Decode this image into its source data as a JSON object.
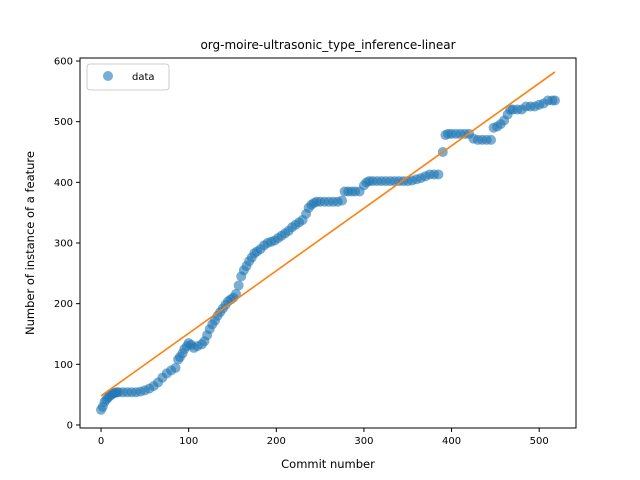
{
  "chart_data": {
    "type": "scatter",
    "title": "org-moire-ultrasonic_type_inference-linear",
    "xlabel": "Commit number",
    "ylabel": "Number of instance of a feature",
    "xlim": [
      -24,
      542
    ],
    "ylim": [
      -5,
      605
    ],
    "xticks": [
      0,
      100,
      200,
      300,
      400,
      500
    ],
    "yticks": [
      0,
      100,
      200,
      300,
      400,
      500,
      600
    ],
    "grid": false,
    "legend": {
      "placement": "top-left",
      "entries": [
        "data"
      ]
    },
    "colors": {
      "data": "#1f77b4",
      "fit": "#ff7f0e"
    },
    "series": [
      {
        "name": "data",
        "style": "markers",
        "points": [
          [
            0,
            25
          ],
          [
            2,
            30
          ],
          [
            4,
            38
          ],
          [
            6,
            42
          ],
          [
            8,
            45
          ],
          [
            10,
            48
          ],
          [
            12,
            50
          ],
          [
            14,
            52
          ],
          [
            16,
            53
          ],
          [
            18,
            54
          ],
          [
            20,
            54
          ],
          [
            25,
            54
          ],
          [
            30,
            54
          ],
          [
            35,
            54
          ],
          [
            40,
            54
          ],
          [
            45,
            55
          ],
          [
            50,
            57
          ],
          [
            55,
            60
          ],
          [
            60,
            64
          ],
          [
            65,
            70
          ],
          [
            70,
            78
          ],
          [
            75,
            85
          ],
          [
            80,
            90
          ],
          [
            85,
            94
          ],
          [
            88,
            108
          ],
          [
            90,
            112
          ],
          [
            93,
            118
          ],
          [
            95,
            125
          ],
          [
            98,
            130
          ],
          [
            100,
            135
          ],
          [
            103,
            132
          ],
          [
            106,
            127
          ],
          [
            110,
            130
          ],
          [
            115,
            133
          ],
          [
            118,
            138
          ],
          [
            121,
            148
          ],
          [
            124,
            158
          ],
          [
            127,
            166
          ],
          [
            130,
            172
          ],
          [
            133,
            180
          ],
          [
            136,
            186
          ],
          [
            139,
            192
          ],
          [
            142,
            198
          ],
          [
            145,
            204
          ],
          [
            148,
            207
          ],
          [
            151,
            210
          ],
          [
            154,
            216
          ],
          [
            157,
            230
          ],
          [
            160,
            245
          ],
          [
            163,
            255
          ],
          [
            166,
            262
          ],
          [
            169,
            270
          ],
          [
            172,
            276
          ],
          [
            175,
            283
          ],
          [
            178,
            286
          ],
          [
            182,
            290
          ],
          [
            186,
            296
          ],
          [
            190,
            300
          ],
          [
            194,
            302
          ],
          [
            198,
            304
          ],
          [
            202,
            308
          ],
          [
            206,
            312
          ],
          [
            210,
            316
          ],
          [
            214,
            320
          ],
          [
            218,
            326
          ],
          [
            222,
            330
          ],
          [
            226,
            334
          ],
          [
            230,
            338
          ],
          [
            234,
            348
          ],
          [
            237,
            358
          ],
          [
            240,
            363
          ],
          [
            243,
            366
          ],
          [
            246,
            368
          ],
          [
            250,
            368
          ],
          [
            255,
            368
          ],
          [
            260,
            368
          ],
          [
            265,
            368
          ],
          [
            270,
            368
          ],
          [
            275,
            370
          ],
          [
            278,
            385
          ],
          [
            282,
            385
          ],
          [
            286,
            385
          ],
          [
            290,
            385
          ],
          [
            295,
            385
          ],
          [
            300,
            395
          ],
          [
            303,
            400
          ],
          [
            306,
            402
          ],
          [
            310,
            402
          ],
          [
            315,
            402
          ],
          [
            320,
            402
          ],
          [
            325,
            402
          ],
          [
            330,
            402
          ],
          [
            335,
            402
          ],
          [
            340,
            402
          ],
          [
            345,
            402
          ],
          [
            350,
            402
          ],
          [
            355,
            403
          ],
          [
            360,
            405
          ],
          [
            365,
            407
          ],
          [
            370,
            410
          ],
          [
            375,
            413
          ],
          [
            380,
            413
          ],
          [
            385,
            413
          ],
          [
            390,
            450
          ],
          [
            393,
            478
          ],
          [
            396,
            480
          ],
          [
            400,
            480
          ],
          [
            405,
            480
          ],
          [
            410,
            480
          ],
          [
            415,
            480
          ],
          [
            420,
            480
          ],
          [
            425,
            472
          ],
          [
            430,
            470
          ],
          [
            435,
            470
          ],
          [
            440,
            470
          ],
          [
            445,
            470
          ],
          [
            448,
            490
          ],
          [
            452,
            492
          ],
          [
            456,
            496
          ],
          [
            460,
            502
          ],
          [
            464,
            512
          ],
          [
            467,
            520
          ],
          [
            470,
            520
          ],
          [
            475,
            520
          ],
          [
            480,
            520
          ],
          [
            485,
            525
          ],
          [
            490,
            525
          ],
          [
            495,
            525
          ],
          [
            500,
            528
          ],
          [
            505,
            530
          ],
          [
            510,
            535
          ],
          [
            515,
            535
          ],
          [
            518,
            535
          ]
        ]
      },
      {
        "name": "fit",
        "style": "line",
        "points": [
          [
            0,
            48
          ],
          [
            518,
            582
          ]
        ]
      }
    ]
  }
}
